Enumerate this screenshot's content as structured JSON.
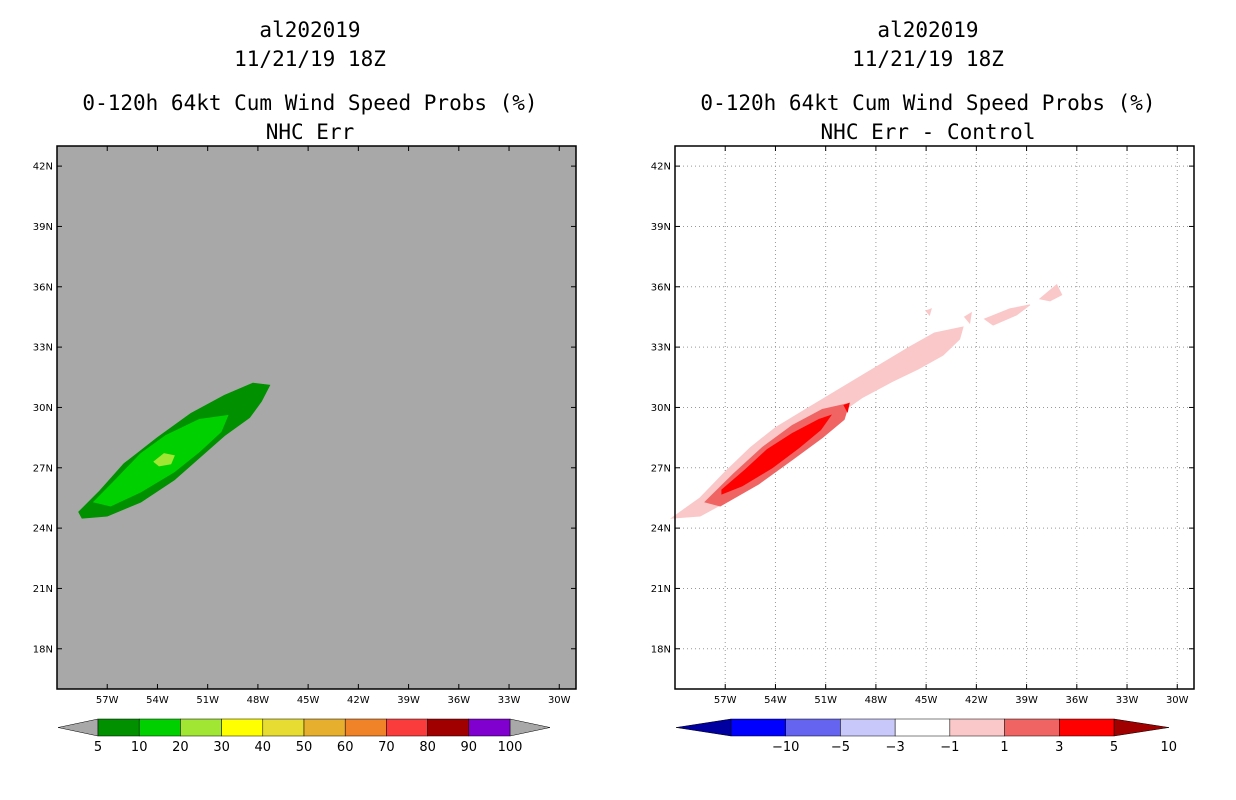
{
  "chart_data": [
    {
      "type": "contour-map",
      "title": [
        "al202019",
        "11/21/19 18Z",
        "0-120h 64kt Cum Wind Speed Probs (%)",
        "NHC Err"
      ],
      "background": "#a8a8a8",
      "lon_ticks": [
        "57W",
        "54W",
        "51W",
        "48W",
        "45W",
        "42W",
        "39W",
        "36W",
        "33W",
        "30W"
      ],
      "lat_ticks": [
        "42N",
        "39N",
        "36N",
        "33N",
        "30N",
        "27N",
        "24N",
        "21N",
        "18N"
      ],
      "lon_range": [
        -60,
        -29
      ],
      "lat_range": [
        16,
        43
      ],
      "grid": false,
      "colorbar": {
        "labels": [
          "5",
          "10",
          "20",
          "30",
          "40",
          "50",
          "60",
          "70",
          "80",
          "90",
          "100"
        ],
        "colors": [
          "#009000",
          "#00d000",
          "#a0e632",
          "#ffff00",
          "#e6dc32",
          "#e6af2d",
          "#f08228",
          "#fa3c3c",
          "#a00000",
          "#8000d0"
        ],
        "end_color": "#a8a8a8"
      },
      "contours": [
        {
          "level": 5,
          "color": "#009000",
          "polygon": [
            [
              -58.7,
              24.8
            ],
            [
              -57.5,
              25.8
            ],
            [
              -56,
              27.2
            ],
            [
              -54,
              28.5
            ],
            [
              -52,
              29.7
            ],
            [
              -50,
              30.6
            ],
            [
              -48.3,
              31.2
            ],
            [
              -47.3,
              31.1
            ],
            [
              -47.8,
              30.3
            ],
            [
              -48.5,
              29.5
            ],
            [
              -50,
              28.6
            ],
            [
              -51.5,
              27.5
            ],
            [
              -53,
              26.4
            ],
            [
              -55,
              25.3
            ],
            [
              -57,
              24.6
            ],
            [
              -58.5,
              24.5
            ]
          ]
        },
        {
          "level": 10,
          "color": "#00d000",
          "polygon": [
            [
              -57.8,
              25.3
            ],
            [
              -56.5,
              26.4
            ],
            [
              -55,
              27.7
            ],
            [
              -53.5,
              28.6
            ],
            [
              -51.5,
              29.4
            ],
            [
              -49.8,
              29.6
            ],
            [
              -50.2,
              28.8
            ],
            [
              -51.5,
              27.8
            ],
            [
              -53,
              26.8
            ],
            [
              -55,
              25.8
            ],
            [
              -56.8,
              25.1
            ]
          ]
        },
        {
          "level": 20,
          "color": "#a0e632",
          "polygon": [
            [
              -54.2,
              27.3
            ],
            [
              -53.6,
              27.7
            ],
            [
              -53,
              27.6
            ],
            [
              -53.2,
              27.2
            ],
            [
              -53.9,
              27.1
            ]
          ]
        }
      ]
    },
    {
      "type": "contour-map",
      "title": [
        "al202019",
        "11/21/19 18Z",
        "0-120h 64kt Cum Wind Speed Probs (%)",
        "NHC Err - Control"
      ],
      "background": "#ffffff",
      "lon_ticks": [
        "57W",
        "54W",
        "51W",
        "48W",
        "45W",
        "42W",
        "39W",
        "36W",
        "33W",
        "30W"
      ],
      "lat_ticks": [
        "42N",
        "39N",
        "36N",
        "33N",
        "30N",
        "27N",
        "24N",
        "21N",
        "18N"
      ],
      "lon_range": [
        -60,
        -29
      ],
      "lat_range": [
        16,
        43
      ],
      "grid": true,
      "colorbar": {
        "labels": [
          "-10",
          "-5",
          "-3",
          "-1",
          "1",
          "3",
          "5",
          "10"
        ],
        "colors": [
          "#0000a0",
          "#0000ff",
          "#6464f0",
          "#c8c8fa",
          "#ffffff",
          "#fac8c8",
          "#f06464",
          "#ff0000",
          "#a00000"
        ]
      },
      "contours": [
        {
          "level": 1,
          "color": "#fac8c8",
          "polygon": [
            [
              -60.2,
              24.5
            ],
            [
              -58.5,
              25.5
            ],
            [
              -57,
              26.8
            ],
            [
              -55.5,
              28
            ],
            [
              -54,
              29
            ],
            [
              -52,
              30
            ],
            [
              -50,
              31
            ],
            [
              -48,
              32
            ],
            [
              -46,
              33
            ],
            [
              -44.5,
              33.7
            ],
            [
              -42.8,
              34
            ],
            [
              -43,
              33.4
            ],
            [
              -44,
              32.6
            ],
            [
              -45.5,
              31.9
            ],
            [
              -47,
              31.3
            ],
            [
              -48.8,
              30.5
            ],
            [
              -50.5,
              29.5
            ],
            [
              -52.5,
              28.2
            ],
            [
              -54.5,
              26.8
            ],
            [
              -56.5,
              25.5
            ],
            [
              -58.5,
              24.6
            ]
          ]
        },
        {
          "level": 1,
          "color": "#fac8c8",
          "polygon": [
            [
              -41.5,
              34.4
            ],
            [
              -40,
              34.9
            ],
            [
              -38.8,
              35.1
            ],
            [
              -39.6,
              34.6
            ],
            [
              -41,
              34.1
            ]
          ]
        },
        {
          "level": 1,
          "color": "#fac8c8",
          "polygon": [
            [
              -38.2,
              35.4
            ],
            [
              -37.2,
              36.1
            ],
            [
              -36.9,
              35.6
            ],
            [
              -37.6,
              35.3
            ]
          ]
        },
        {
          "level": 1,
          "color": "#fac8c8",
          "polygon": [
            [
              -42.7,
              34.5
            ],
            [
              -42.3,
              34.7
            ],
            [
              -42.4,
              34.2
            ]
          ]
        },
        {
          "level": 1,
          "color": "#fac8c8",
          "polygon": [
            [
              -45,
              34.8
            ],
            [
              -44.7,
              34.9
            ],
            [
              -44.8,
              34.6
            ]
          ]
        },
        {
          "level": 3,
          "color": "#f06464",
          "polygon": [
            [
              -58.2,
              25.3
            ],
            [
              -56.5,
              26.7
            ],
            [
              -54.8,
              28
            ],
            [
              -53,
              29.1
            ],
            [
              -51.2,
              29.9
            ],
            [
              -49.6,
              30.2
            ],
            [
              -49.9,
              29.4
            ],
            [
              -51.2,
              28.5
            ],
            [
              -53,
              27.4
            ],
            [
              -55,
              26.2
            ],
            [
              -57.3,
              25.1
            ]
          ]
        },
        {
          "level": 5,
          "color": "#ff0000",
          "polygon": [
            [
              -57.2,
              25.9
            ],
            [
              -55.8,
              26.9
            ],
            [
              -54.5,
              27.9
            ],
            [
              -53,
              28.7
            ],
            [
              -51.4,
              29.4
            ],
            [
              -50.7,
              29.6
            ],
            [
              -51.3,
              28.9
            ],
            [
              -52.6,
              28
            ],
            [
              -54.2,
              27
            ],
            [
              -56,
              26.1
            ],
            [
              -57.2,
              25.7
            ]
          ]
        },
        {
          "level": 5,
          "color": "#ff0000",
          "polygon": [
            [
              -49.9,
              30.1
            ],
            [
              -49.6,
              30.2
            ],
            [
              -49.7,
              29.8
            ]
          ]
        }
      ]
    }
  ]
}
